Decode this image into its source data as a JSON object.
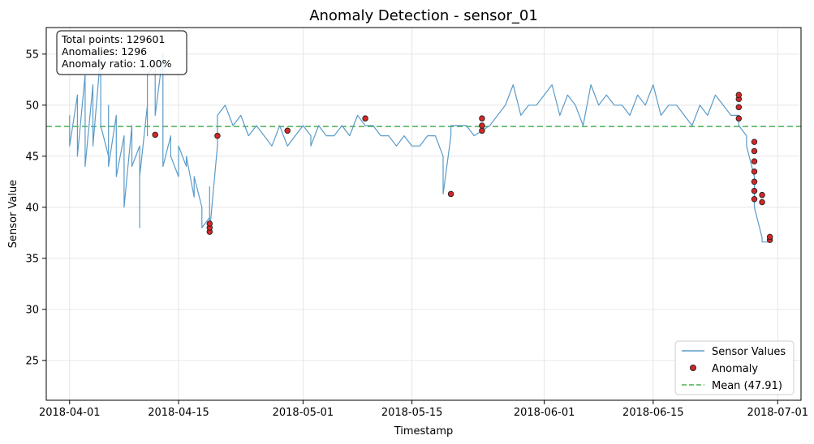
{
  "chart_data": {
    "type": "line",
    "title": "Anomaly Detection - sensor_01",
    "xlabel": "Timestamp",
    "ylabel": "Sensor Value",
    "x_range": [
      "2018-03-29",
      "2018-07-04"
    ],
    "ylim": [
      21.1,
      57.6
    ],
    "grid": true,
    "x_ticks": [
      "2018-04-01",
      "2018-04-15",
      "2018-05-01",
      "2018-05-15",
      "2018-06-01",
      "2018-06-15",
      "2018-07-01"
    ],
    "y_ticks": [
      25,
      30,
      35,
      40,
      45,
      50,
      55
    ],
    "info_box": {
      "lines": [
        "Total points: 129601",
        "Anomalies: 1296",
        "Anomaly ratio: 1.00%"
      ],
      "placement": "top-left"
    },
    "legend": {
      "placement": "bottom-right",
      "entries": [
        "Sensor Values",
        "Anomaly",
        "Mean (47.91)"
      ]
    },
    "colors": {
      "line": "#5b9bc8",
      "anomaly_fill": "#d62728",
      "anomaly_edge": "#222222",
      "mean": "#4caf50"
    },
    "mean": 47.91,
    "series": [
      {
        "name": "Sensor Values",
        "x": [
          "2018-04-01",
          "2018-04-01",
          "2018-04-02",
          "2018-04-02",
          "2018-04-03",
          "2018-04-03",
          "2018-04-03",
          "2018-04-04",
          "2018-04-04",
          "2018-04-05",
          "2018-04-05",
          "2018-04-06",
          "2018-04-06",
          "2018-04-06",
          "2018-04-07",
          "2018-04-07",
          "2018-04-08",
          "2018-04-08",
          "2018-04-09",
          "2018-04-09",
          "2018-04-10",
          "2018-04-10",
          "2018-04-10",
          "2018-04-11",
          "2018-04-11",
          "2018-04-11",
          "2018-04-12",
          "2018-04-12",
          "2018-04-13",
          "2018-04-13",
          "2018-04-13",
          "2018-04-14",
          "2018-04-14",
          "2018-04-15",
          "2018-04-15",
          "2018-04-16",
          "2018-04-16",
          "2018-04-17",
          "2018-04-17",
          "2018-04-18",
          "2018-04-18",
          "2018-04-19",
          "2018-04-19",
          "2018-04-19",
          "2018-04-20",
          "2018-04-20",
          "2018-04-21",
          "2018-04-22",
          "2018-04-23",
          "2018-04-24",
          "2018-04-25",
          "2018-04-26",
          "2018-04-27",
          "2018-04-28",
          "2018-04-29",
          "2018-04-30",
          "2018-05-01",
          "2018-05-02",
          "2018-05-02",
          "2018-05-03",
          "2018-05-04",
          "2018-05-05",
          "2018-05-06",
          "2018-05-07",
          "2018-05-08",
          "2018-05-09",
          "2018-05-10",
          "2018-05-11",
          "2018-05-12",
          "2018-05-13",
          "2018-05-14",
          "2018-05-15",
          "2018-05-16",
          "2018-05-17",
          "2018-05-18",
          "2018-05-19",
          "2018-05-19",
          "2018-05-20",
          "2018-05-20",
          "2018-05-21",
          "2018-05-22",
          "2018-05-23",
          "2018-05-24",
          "2018-05-25",
          "2018-05-26",
          "2018-05-27",
          "2018-05-28",
          "2018-05-29",
          "2018-05-30",
          "2018-05-31",
          "2018-06-01",
          "2018-06-02",
          "2018-06-03",
          "2018-06-04",
          "2018-06-05",
          "2018-06-06",
          "2018-06-07",
          "2018-06-08",
          "2018-06-09",
          "2018-06-10",
          "2018-06-11",
          "2018-06-12",
          "2018-06-13",
          "2018-06-14",
          "2018-06-15",
          "2018-06-16",
          "2018-06-17",
          "2018-06-18",
          "2018-06-19",
          "2018-06-20",
          "2018-06-21",
          "2018-06-22",
          "2018-06-23",
          "2018-06-24",
          "2018-06-25",
          "2018-06-26",
          "2018-06-26",
          "2018-06-27",
          "2018-06-27",
          "2018-06-28",
          "2018-06-28",
          "2018-06-29",
          "2018-06-29",
          "2018-06-30"
        ],
        "y": [
          49,
          46,
          51,
          45,
          53,
          47,
          44,
          52,
          46,
          55,
          48,
          45,
          50,
          44,
          49,
          43,
          47,
          40,
          48,
          44,
          46,
          38,
          43,
          50,
          47,
          53,
          54,
          49,
          55,
          47,
          44,
          47,
          45,
          43,
          46,
          44,
          45,
          41,
          43,
          40,
          38,
          39,
          42,
          37.6,
          46,
          49,
          50,
          48,
          49,
          47,
          48,
          47,
          46,
          48,
          46,
          47,
          48,
          47,
          46,
          48,
          47,
          47,
          48,
          47,
          49,
          48,
          48,
          47,
          47,
          46,
          47,
          46,
          46,
          47,
          47,
          45,
          41.3,
          47,
          48,
          48,
          48,
          47,
          47.5,
          48,
          49,
          50,
          52,
          49,
          50,
          50,
          51,
          52,
          49,
          51,
          50,
          48,
          52,
          50,
          51,
          50,
          50,
          49,
          51,
          50,
          52,
          49,
          50,
          50,
          49,
          48,
          50,
          49,
          51,
          50,
          49,
          49,
          48,
          47,
          46,
          43,
          40,
          37,
          36.6,
          36.6
        ]
      },
      {
        "name": "Anomaly",
        "x": [
          "2018-04-12",
          "2018-04-19",
          "2018-04-19",
          "2018-04-19",
          "2018-04-20",
          "2018-04-29",
          "2018-05-09",
          "2018-05-20",
          "2018-05-24",
          "2018-05-24",
          "2018-05-24",
          "2018-06-26",
          "2018-06-26",
          "2018-06-26",
          "2018-06-26",
          "2018-06-28",
          "2018-06-28",
          "2018-06-28",
          "2018-06-28",
          "2018-06-28",
          "2018-06-28",
          "2018-06-28",
          "2018-06-29",
          "2018-06-29",
          "2018-06-30",
          "2018-06-30"
        ],
        "y": [
          47.1,
          37.6,
          38.0,
          38.4,
          47.0,
          47.5,
          48.7,
          41.3,
          47.5,
          48.0,
          48.7,
          48.7,
          49.8,
          50.6,
          51.0,
          46.4,
          45.5,
          44.5,
          43.5,
          42.5,
          41.6,
          40.8,
          41.2,
          40.5,
          36.8,
          37.1
        ]
      }
    ]
  }
}
